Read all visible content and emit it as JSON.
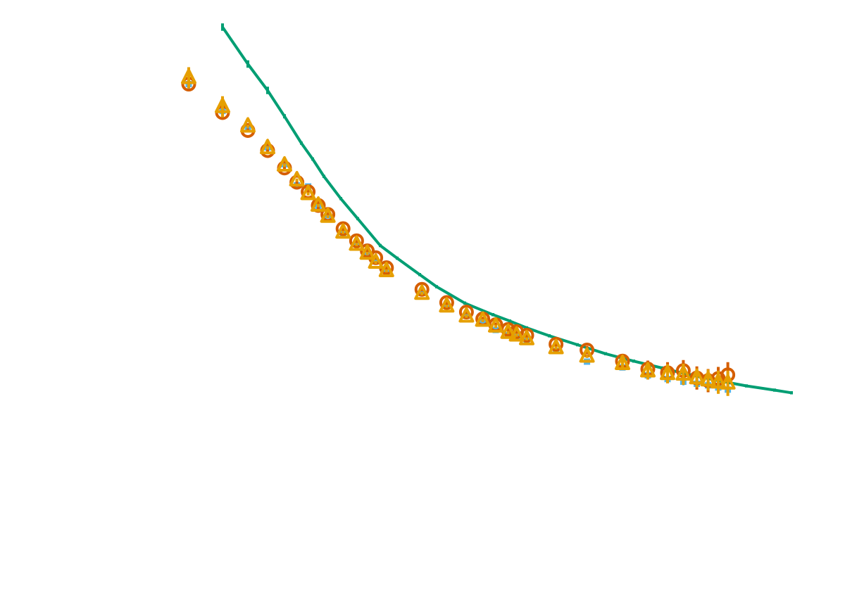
{
  "chart_data": {
    "type": "scatter",
    "title": "",
    "xlabel": "",
    "ylabel": "",
    "xlim": [
      0,
      15
    ],
    "ylim": [
      0,
      1.0
    ],
    "grid": false,
    "legend": "none",
    "series": [
      {
        "name": "model-curve",
        "kind": "line",
        "color": "#009E73",
        "x": [
          3.2,
          3.65,
          4.0,
          4.3,
          4.6,
          4.8,
          5.0,
          5.3,
          5.6,
          6.0,
          6.3,
          6.7,
          7.0,
          7.5,
          8.0,
          8.3,
          8.6,
          9.0,
          9.5,
          10.0,
          10.5,
          11.0,
          11.5,
          12.0,
          12.5,
          13.0,
          13.3
        ],
        "y": [
          0.962,
          0.892,
          0.842,
          0.793,
          0.742,
          0.712,
          0.679,
          0.637,
          0.599,
          0.548,
          0.524,
          0.493,
          0.47,
          0.439,
          0.417,
          0.405,
          0.392,
          0.377,
          0.36,
          0.343,
          0.329,
          0.316,
          0.303,
          0.292,
          0.282,
          0.274,
          0.269
        ],
        "yerr": [
          0.007,
          0.007,
          0.007,
          0.004,
          0.003,
          0.003,
          0.003,
          0.003,
          0.003,
          0.003,
          0.003,
          0.003,
          0.003,
          0.003,
          0.003,
          0.003,
          0.003,
          0.003,
          0.003,
          0.003,
          0.003,
          0.003,
          0.003,
          0.003,
          0.003,
          0.003,
          0.003
        ]
      },
      {
        "name": "squares",
        "kind": "marker",
        "marker": "square",
        "color": "#56B4E9",
        "x": [
          2.6,
          3.2,
          3.65,
          4.0,
          4.3,
          4.52,
          4.72,
          4.9,
          5.07,
          5.34,
          5.58,
          5.77,
          5.92,
          6.11,
          6.74,
          7.18,
          7.53,
          7.82,
          8.05,
          8.27,
          8.42,
          8.6,
          9.12,
          9.67,
          10.3,
          10.75,
          11.1,
          11.38,
          11.62,
          11.82,
          12.0,
          12.17
        ],
        "y": [
          0.854,
          0.803,
          0.77,
          0.734,
          0.702,
          0.662,
          0.66,
          0.622,
          0.605,
          0.572,
          0.553,
          0.533,
          0.519,
          0.504,
          0.461,
          0.437,
          0.415,
          0.404,
          0.388,
          0.378,
          0.375,
          0.368,
          0.348,
          0.328,
          0.317,
          0.302,
          0.295,
          0.29,
          0.286,
          0.283,
          0.279,
          0.275
        ],
        "yerr": [
          0.01,
          0.01,
          0.008,
          0.004,
          0.004,
          0.004,
          0.004,
          0.004,
          0.004,
          0.004,
          0.004,
          0.004,
          0.004,
          0.004,
          0.004,
          0.004,
          0.004,
          0.004,
          0.004,
          0.004,
          0.004,
          0.004,
          0.004,
          0.004,
          0.005,
          0.006,
          0.006,
          0.007,
          0.007,
          0.007,
          0.008,
          0.008
        ]
      },
      {
        "name": "circles",
        "kind": "marker",
        "marker": "circle",
        "color": "#D55E00",
        "x": [
          2.6,
          3.2,
          3.65,
          4.0,
          4.3,
          4.52,
          4.72,
          4.9,
          5.07,
          5.34,
          5.58,
          5.77,
          5.92,
          6.11,
          6.74,
          7.18,
          7.53,
          7.82,
          8.05,
          8.27,
          8.42,
          8.6,
          9.12,
          9.67,
          10.3,
          10.75,
          11.1,
          11.38,
          11.62,
          11.82,
          12.0,
          12.17
        ],
        "y": [
          0.854,
          0.8,
          0.766,
          0.728,
          0.695,
          0.668,
          0.65,
          0.624,
          0.607,
          0.58,
          0.557,
          0.538,
          0.525,
          0.506,
          0.465,
          0.44,
          0.422,
          0.409,
          0.398,
          0.389,
          0.385,
          0.378,
          0.361,
          0.35,
          0.329,
          0.314,
          0.307,
          0.311,
          0.297,
          0.292,
          0.296,
          0.303
        ],
        "yerr": [
          0.004,
          0.004,
          0.004,
          0.004,
          0.004,
          0.004,
          0.004,
          0.01,
          0.004,
          0.004,
          0.004,
          0.004,
          0.004,
          0.004,
          0.004,
          0.004,
          0.004,
          0.004,
          0.004,
          0.004,
          0.004,
          0.004,
          0.008,
          0.008,
          0.012,
          0.016,
          0.02,
          0.02,
          0.022,
          0.022,
          0.022,
          0.024
        ]
      },
      {
        "name": "triangles",
        "kind": "marker",
        "marker": "triangle",
        "color": "#E69F00",
        "x": [
          2.6,
          3.2,
          3.65,
          4.0,
          4.3,
          4.52,
          4.72,
          4.9,
          5.07,
          5.34,
          5.58,
          5.77,
          5.92,
          6.11,
          6.74,
          7.18,
          7.53,
          7.82,
          8.05,
          8.27,
          8.42,
          8.6,
          9.12,
          9.67,
          10.3,
          10.75,
          11.1,
          11.38,
          11.62,
          11.82,
          12.0,
          12.17
        ],
        "y": [
          0.866,
          0.811,
          0.774,
          0.733,
          0.7,
          0.672,
          0.646,
          0.624,
          0.603,
          0.573,
          0.55,
          0.533,
          0.516,
          0.5,
          0.457,
          0.433,
          0.414,
          0.406,
          0.395,
          0.383,
          0.378,
          0.371,
          0.354,
          0.338,
          0.324,
          0.31,
          0.305,
          0.304,
          0.297,
          0.293,
          0.289,
          0.287
        ],
        "yerr": [
          0.02,
          0.02,
          0.003,
          0.003,
          0.003,
          0.003,
          0.003,
          0.003,
          0.003,
          0.003,
          0.003,
          0.003,
          0.003,
          0.003,
          0.003,
          0.003,
          0.003,
          0.003,
          0.003,
          0.003,
          0.003,
          0.003,
          0.003,
          0.003,
          0.008,
          0.016,
          0.018,
          0.02,
          0.018,
          0.02,
          0.022,
          0.024
        ]
      }
    ]
  }
}
